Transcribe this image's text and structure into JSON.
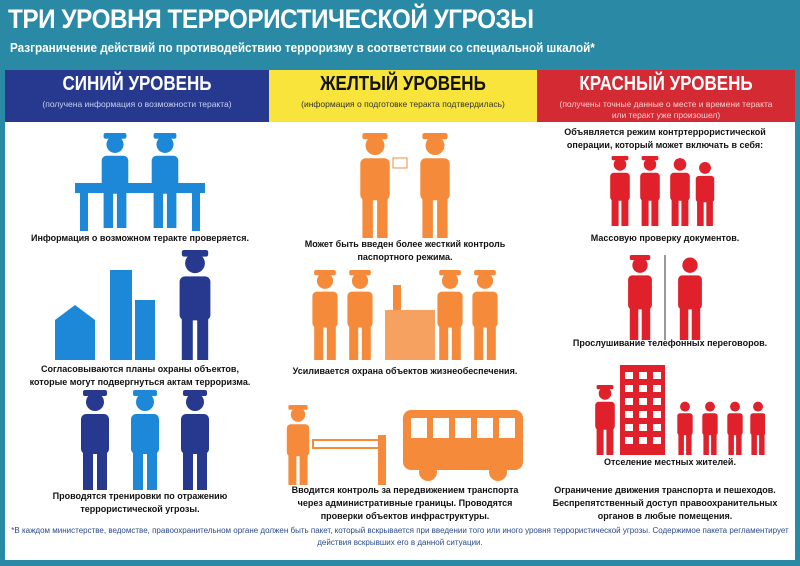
{
  "header": {
    "title": "ТРИ УРОВНЯ ТЕРРОРИСТИЧЕСКОЙ УГРОЗЫ",
    "subtitle": "Разграничение действий по противодействию терроризму в соответствии со специальной шкалой*"
  },
  "colors": {
    "blue": "#27398f",
    "yellow": "#f8e43a",
    "red": "#d42a33",
    "teal": "#2a8aa6",
    "blue_icon": "#1e88d8",
    "orange_icon": "#f58a3a",
    "red_icon": "#e0202a"
  },
  "levels": [
    {
      "title": "СИНИЙ УРОВЕНЬ",
      "note": "(получена информация о возможности теракта)",
      "items": [
        "Информация о возможном теракте проверяется.",
        "Согласовываются планы охраны объектов, которые могут подвергнуться актам терроризма.",
        "Проводятся тренировки по отражению террористической угрозы."
      ],
      "icons": [
        "officers-at-desk-icon",
        "buildings-and-guard-icon",
        "officers-patrol-icon"
      ]
    },
    {
      "title": "ЖЕЛТЫЙ УРОВЕНЬ",
      "note": "(информация о подготовке теракта подтвердилась)",
      "items": [
        "Может быть введен более жесткий контроль паспортного режима.",
        "Усиливается охрана объектов жизнеобеспечения.",
        "Вводится контроль за передвижением транспорта через административные границы. Проводятся проверки объектов инфраструктуры."
      ],
      "icons": [
        "passport-check-icon",
        "guarded-factory-icon",
        "barrier-and-bus-icon"
      ]
    },
    {
      "title": "КРАСНЫЙ УРОВЕНЬ",
      "note": "(получены точные данные о месте и времени теракта или теракт уже произошел)",
      "intro": "Объявляется режим контртеррористической операции, который может включать в себя:",
      "items": [
        "Массовую проверку документов.",
        "Прослушивание телефонных переговоров.",
        "Отселение местных жителей.",
        "Ограничение движения транспорта и пешеходов. Беспрепятственный доступ правоохранительных органов в любые помещения."
      ],
      "icons": [
        "document-check-icon",
        "phone-tapping-icon",
        "evacuation-icon"
      ]
    }
  ],
  "footnote": "*В каждом министерстве, ведомстве, правоохранительном органе должен быть пакет, который вскрывается при введении того или иного уровня террористической угрозы. Содержимое пакета регламентирует действия вскрывших его в данной ситуации."
}
